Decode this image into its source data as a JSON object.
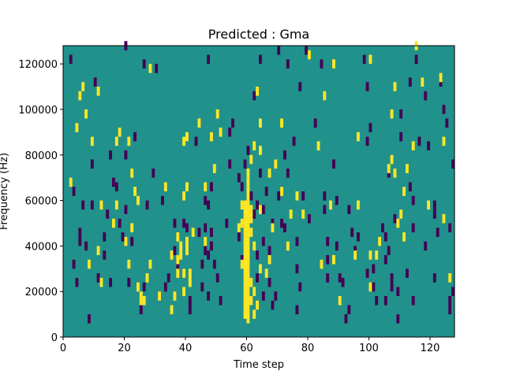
{
  "chart_data": {
    "type": "heatmap",
    "title": "Predicted : Gma",
    "xlabel": "Time step",
    "ylabel": "Frequency (Hz)",
    "xlim": [
      0,
      128
    ],
    "ylim": [
      0,
      128000
    ],
    "x_ticks": [
      0,
      20,
      40,
      60,
      80,
      100,
      120
    ],
    "y_ticks": [
      0,
      20000,
      40000,
      60000,
      80000,
      100000,
      120000
    ],
    "grid": false,
    "legend": "none",
    "colors": {
      "background": "#21918c",
      "low": "#440154",
      "high": "#fde725"
    },
    "bin_size_hz": 2000,
    "cells_high": [
      [
        2,
        66000
      ],
      [
        4,
        90000
      ],
      [
        5,
        104000
      ],
      [
        6,
        108000
      ],
      [
        7,
        96000
      ],
      [
        8,
        30000
      ],
      [
        9,
        84000
      ],
      [
        11,
        36000
      ],
      [
        11,
        106000
      ],
      [
        12,
        56000
      ],
      [
        12,
        22000
      ],
      [
        16,
        48000
      ],
      [
        17,
        56000
      ],
      [
        17,
        84000
      ],
      [
        18,
        88000
      ],
      [
        20,
        40000
      ],
      [
        21,
        30000
      ],
      [
        21,
        84000
      ],
      [
        22,
        46000
      ],
      [
        22,
        70000
      ],
      [
        23,
        62000
      ],
      [
        24,
        20000
      ],
      [
        24,
        58000
      ],
      [
        25,
        14000
      ],
      [
        25,
        16000
      ],
      [
        26,
        14000
      ],
      [
        27,
        24000
      ],
      [
        28,
        30000
      ],
      [
        28,
        116000
      ],
      [
        31,
        16000
      ],
      [
        33,
        64000
      ],
      [
        35,
        10000
      ],
      [
        35,
        34000
      ],
      [
        36,
        16000
      ],
      [
        37,
        42000
      ],
      [
        37,
        32000
      ],
      [
        37,
        26000
      ],
      [
        38,
        34000
      ],
      [
        38,
        38000
      ],
      [
        39,
        84000
      ],
      [
        39,
        60000
      ],
      [
        39,
        26000
      ],
      [
        39,
        18000
      ],
      [
        40,
        36000
      ],
      [
        40,
        64000
      ],
      [
        40,
        86000
      ],
      [
        40,
        40000
      ],
      [
        41,
        26000
      ],
      [
        41,
        22000
      ],
      [
        42,
        44000
      ],
      [
        44,
        92000
      ],
      [
        46,
        64000
      ],
      [
        46,
        40000
      ],
      [
        48,
        86000
      ],
      [
        49,
        72000
      ],
      [
        50,
        96000
      ],
      [
        51,
        88000
      ],
      [
        57,
        46000
      ],
      [
        58,
        48000
      ],
      [
        58,
        30000
      ],
      [
        58,
        56000
      ],
      [
        59,
        8000
      ],
      [
        59,
        12000
      ],
      [
        59,
        16000
      ],
      [
        59,
        20000
      ],
      [
        59,
        24000
      ],
      [
        59,
        28000
      ],
      [
        59,
        32000
      ],
      [
        59,
        36000
      ],
      [
        59,
        40000
      ],
      [
        59,
        44000
      ],
      [
        59,
        48000
      ],
      [
        59,
        52000
      ],
      [
        59,
        56000
      ],
      [
        60,
        6000
      ],
      [
        60,
        10000
      ],
      [
        60,
        14000
      ],
      [
        60,
        18000
      ],
      [
        60,
        22000
      ],
      [
        60,
        26000
      ],
      [
        60,
        30000
      ],
      [
        60,
        34000
      ],
      [
        60,
        38000
      ],
      [
        60,
        42000
      ],
      [
        60,
        46000
      ],
      [
        60,
        50000
      ],
      [
        60,
        54000
      ],
      [
        60,
        58000
      ],
      [
        60,
        62000
      ],
      [
        60,
        66000
      ],
      [
        60,
        70000
      ],
      [
        61,
        14000
      ],
      [
        61,
        22000
      ],
      [
        61,
        44000
      ],
      [
        61,
        50000
      ],
      [
        61,
        54000
      ],
      [
        61,
        76000
      ],
      [
        62,
        8000
      ],
      [
        62,
        18000
      ],
      [
        62,
        38000
      ],
      [
        62,
        82000
      ],
      [
        63,
        12000
      ],
      [
        63,
        106000
      ],
      [
        64,
        54000
      ],
      [
        64,
        80000
      ],
      [
        64,
        92000
      ],
      [
        64,
        28000
      ],
      [
        66,
        26000
      ],
      [
        67,
        32000
      ],
      [
        67,
        70000
      ],
      [
        68,
        46000
      ],
      [
        69,
        74000
      ],
      [
        71,
        62000
      ],
      [
        71,
        92000
      ],
      [
        73,
        38000
      ],
      [
        74,
        52000
      ],
      [
        76,
        60000
      ],
      [
        78,
        52000
      ],
      [
        80,
        122000
      ],
      [
        84,
        30000
      ],
      [
        83,
        82000
      ],
      [
        85,
        104000
      ],
      [
        88,
        118000
      ],
      [
        87,
        56000
      ],
      [
        88,
        32000
      ],
      [
        90,
        14000
      ],
      [
        95,
        34000
      ],
      [
        96,
        86000
      ],
      [
        96,
        56000
      ],
      [
        100,
        34000
      ],
      [
        100,
        20000
      ],
      [
        100,
        120000
      ],
      [
        102,
        34000
      ],
      [
        103,
        40000
      ],
      [
        106,
        72000
      ],
      [
        107,
        76000
      ],
      [
        107,
        96000
      ],
      [
        108,
        70000
      ],
      [
        108,
        108000
      ],
      [
        109,
        48000
      ],
      [
        110,
        52000
      ],
      [
        111,
        42000
      ],
      [
        111,
        62000
      ],
      [
        112,
        72000
      ],
      [
        114,
        82000
      ],
      [
        115,
        126000
      ],
      [
        117,
        110000
      ],
      [
        119,
        56000
      ],
      [
        123,
        112000
      ],
      [
        124,
        84000
      ],
      [
        124,
        50000
      ],
      [
        126,
        24000
      ]
    ],
    "cells_low": [
      [
        2,
        120000
      ],
      [
        3,
        30000
      ],
      [
        3,
        62000
      ],
      [
        4,
        22000
      ],
      [
        5,
        40000
      ],
      [
        5,
        44000
      ],
      [
        6,
        56000
      ],
      [
        7,
        38000
      ],
      [
        8,
        6000
      ],
      [
        9,
        56000
      ],
      [
        9,
        74000
      ],
      [
        10,
        110000
      ],
      [
        11,
        24000
      ],
      [
        13,
        34000
      ],
      [
        13,
        42000
      ],
      [
        14,
        52000
      ],
      [
        15,
        22000
      ],
      [
        15,
        78000
      ],
      [
        16,
        66000
      ],
      [
        17,
        64000
      ],
      [
        18,
        48000
      ],
      [
        19,
        42000
      ],
      [
        20,
        126000
      ],
      [
        20,
        54000
      ],
      [
        20,
        78000
      ],
      [
        21,
        22000
      ],
      [
        22,
        40000
      ],
      [
        23,
        86000
      ],
      [
        25,
        10000
      ],
      [
        26,
        20000
      ],
      [
        26,
        118000
      ],
      [
        27,
        56000
      ],
      [
        29,
        70000
      ],
      [
        30,
        116000
      ],
      [
        32,
        58000
      ],
      [
        33,
        20000
      ],
      [
        34,
        24000
      ],
      [
        36,
        36000
      ],
      [
        36,
        48000
      ],
      [
        37,
        30000
      ],
      [
        39,
        48000
      ],
      [
        40,
        46000
      ],
      [
        41,
        10000
      ],
      [
        41,
        14000
      ],
      [
        43,
        84000
      ],
      [
        44,
        44000
      ],
      [
        45,
        20000
      ],
      [
        45,
        30000
      ],
      [
        46,
        36000
      ],
      [
        46,
        46000
      ],
      [
        46,
        58000
      ],
      [
        47,
        16000
      ],
      [
        47,
        34000
      ],
      [
        47,
        56000
      ],
      [
        47,
        120000
      ],
      [
        48,
        44000
      ],
      [
        48,
        64000
      ],
      [
        48,
        38000
      ],
      [
        49,
        30000
      ],
      [
        50,
        24000
      ],
      [
        51,
        14000
      ],
      [
        53,
        48000
      ],
      [
        54,
        74000
      ],
      [
        54,
        88000
      ],
      [
        55,
        92000
      ],
      [
        57,
        68000
      ],
      [
        57,
        42000
      ],
      [
        58,
        64000
      ],
      [
        58,
        32000
      ],
      [
        59,
        74000
      ],
      [
        60,
        80000
      ],
      [
        61,
        60000
      ],
      [
        62,
        104000
      ],
      [
        62,
        52000
      ],
      [
        63,
        24000
      ],
      [
        63,
        34000
      ],
      [
        63,
        56000
      ],
      [
        64,
        120000
      ],
      [
        64,
        70000
      ],
      [
        65,
        16000
      ],
      [
        65,
        40000
      ],
      [
        65,
        54000
      ],
      [
        66,
        62000
      ],
      [
        67,
        36000
      ],
      [
        67,
        22000
      ],
      [
        68,
        12000
      ],
      [
        68,
        48000
      ],
      [
        69,
        16000
      ],
      [
        70,
        60000
      ],
      [
        70,
        124000
      ],
      [
        71,
        48000
      ],
      [
        72,
        46000
      ],
      [
        72,
        78000
      ],
      [
        73,
        70000
      ],
      [
        73,
        118000
      ],
      [
        75,
        84000
      ],
      [
        76,
        40000
      ],
      [
        76,
        28000
      ],
      [
        76,
        10000
      ],
      [
        77,
        20000
      ],
      [
        77,
        108000
      ],
      [
        78,
        60000
      ],
      [
        79,
        124000
      ],
      [
        80,
        50000
      ],
      [
        82,
        92000
      ],
      [
        84,
        118000
      ],
      [
        85,
        60000
      ],
      [
        85,
        54000
      ],
      [
        86,
        40000
      ],
      [
        86,
        24000
      ],
      [
        86,
        32000
      ],
      [
        88,
        74000
      ],
      [
        89,
        58000
      ],
      [
        89,
        38000
      ],
      [
        90,
        24000
      ],
      [
        91,
        22000
      ],
      [
        92,
        6000
      ],
      [
        93,
        54000
      ],
      [
        93,
        10000
      ],
      [
        94,
        44000
      ],
      [
        95,
        36000
      ],
      [
        96,
        42000
      ],
      [
        98,
        120000
      ],
      [
        99,
        108000
      ],
      [
        99,
        84000
      ],
      [
        99,
        26000
      ],
      [
        100,
        90000
      ],
      [
        101,
        28000
      ],
      [
        101,
        20000
      ],
      [
        102,
        14000
      ],
      [
        104,
        46000
      ],
      [
        105,
        42000
      ],
      [
        105,
        32000
      ],
      [
        105,
        14000
      ],
      [
        106,
        70000
      ],
      [
        106,
        36000
      ],
      [
        107,
        24000
      ],
      [
        107,
        20000
      ],
      [
        108,
        50000
      ],
      [
        109,
        18000
      ],
      [
        109,
        6000
      ],
      [
        110,
        86000
      ],
      [
        110,
        96000
      ],
      [
        112,
        26000
      ],
      [
        113,
        110000
      ],
      [
        113,
        64000
      ],
      [
        114,
        58000
      ],
      [
        114,
        14000
      ],
      [
        114,
        46000
      ],
      [
        115,
        120000
      ],
      [
        116,
        84000
      ],
      [
        118,
        104000
      ],
      [
        118,
        38000
      ],
      [
        119,
        82000
      ],
      [
        121,
        56000
      ],
      [
        121,
        52000
      ],
      [
        121,
        24000
      ],
      [
        122,
        44000
      ],
      [
        123,
        110000
      ],
      [
        124,
        98000
      ],
      [
        125,
        92000
      ],
      [
        126,
        10000
      ],
      [
        126,
        14000
      ],
      [
        126,
        46000
      ],
      [
        127,
        74000
      ],
      [
        127,
        18000
      ]
    ]
  }
}
